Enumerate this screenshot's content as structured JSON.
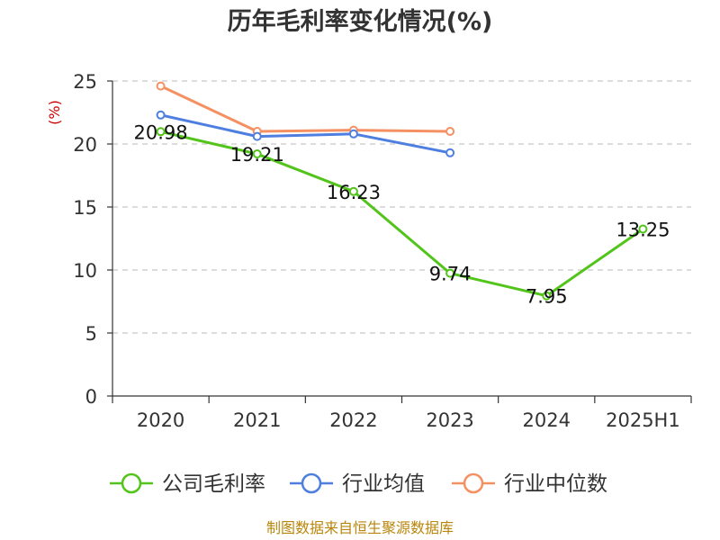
{
  "chart_data": {
    "type": "line",
    "title": "历年毛利率变化情况(%)",
    "ylabel": "(%)",
    "xlabel": "",
    "categories": [
      "2020",
      "2021",
      "2022",
      "2023",
      "2024",
      "2025H1"
    ],
    "ylim": [
      0,
      25
    ],
    "yticks": [
      0,
      5,
      10,
      15,
      20,
      25
    ],
    "grid": true,
    "legend_position": "bottom",
    "series": [
      {
        "name": "公司毛利率",
        "color": "#52c41a",
        "values": [
          20.98,
          19.21,
          16.23,
          9.74,
          7.95,
          13.25
        ],
        "show_labels": true
      },
      {
        "name": "行业均值",
        "color": "#4e7fe0",
        "values": [
          22.3,
          20.6,
          20.8,
          19.3,
          null,
          null
        ],
        "show_labels": false
      },
      {
        "name": "行业中位数",
        "color": "#f59062",
        "values": [
          24.6,
          21.0,
          21.1,
          21.0,
          null,
          null
        ],
        "show_labels": false
      }
    ],
    "source": "制图数据来自恒生聚源数据库"
  }
}
